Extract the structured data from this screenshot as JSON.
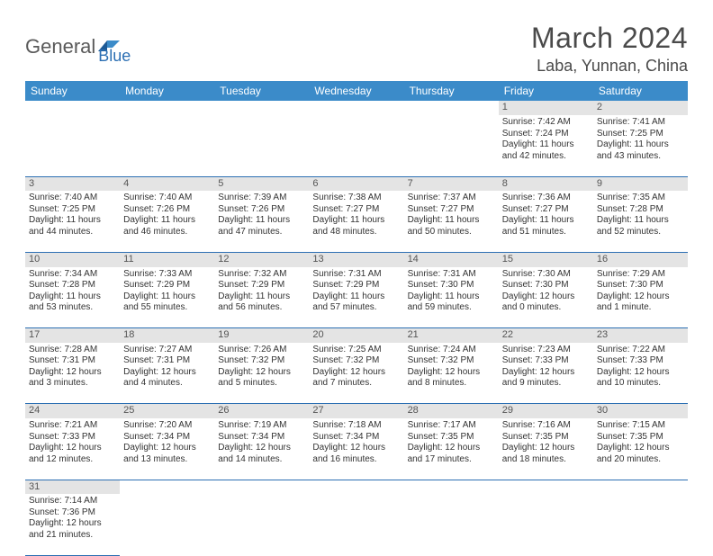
{
  "logo": {
    "part1": "General",
    "part2": "Blue"
  },
  "title": "March 2024",
  "location": "Laba, Yunnan, China",
  "colors": {
    "header_bg": "#3b8bc9",
    "header_text": "#ffffff",
    "daynum_bg": "#e4e4e4",
    "border": "#2c6fb3",
    "logo_gray": "#5a5a5a",
    "logo_blue": "#2c6fb3"
  },
  "day_headers": [
    "Sunday",
    "Monday",
    "Tuesday",
    "Wednesday",
    "Thursday",
    "Friday",
    "Saturday"
  ],
  "weeks": [
    [
      null,
      null,
      null,
      null,
      null,
      {
        "n": "1",
        "sr": "Sunrise: 7:42 AM",
        "ss": "Sunset: 7:24 PM",
        "d1": "Daylight: 11 hours",
        "d2": "and 42 minutes."
      },
      {
        "n": "2",
        "sr": "Sunrise: 7:41 AM",
        "ss": "Sunset: 7:25 PM",
        "d1": "Daylight: 11 hours",
        "d2": "and 43 minutes."
      }
    ],
    [
      {
        "n": "3",
        "sr": "Sunrise: 7:40 AM",
        "ss": "Sunset: 7:25 PM",
        "d1": "Daylight: 11 hours",
        "d2": "and 44 minutes."
      },
      {
        "n": "4",
        "sr": "Sunrise: 7:40 AM",
        "ss": "Sunset: 7:26 PM",
        "d1": "Daylight: 11 hours",
        "d2": "and 46 minutes."
      },
      {
        "n": "5",
        "sr": "Sunrise: 7:39 AM",
        "ss": "Sunset: 7:26 PM",
        "d1": "Daylight: 11 hours",
        "d2": "and 47 minutes."
      },
      {
        "n": "6",
        "sr": "Sunrise: 7:38 AM",
        "ss": "Sunset: 7:27 PM",
        "d1": "Daylight: 11 hours",
        "d2": "and 48 minutes."
      },
      {
        "n": "7",
        "sr": "Sunrise: 7:37 AM",
        "ss": "Sunset: 7:27 PM",
        "d1": "Daylight: 11 hours",
        "d2": "and 50 minutes."
      },
      {
        "n": "8",
        "sr": "Sunrise: 7:36 AM",
        "ss": "Sunset: 7:27 PM",
        "d1": "Daylight: 11 hours",
        "d2": "and 51 minutes."
      },
      {
        "n": "9",
        "sr": "Sunrise: 7:35 AM",
        "ss": "Sunset: 7:28 PM",
        "d1": "Daylight: 11 hours",
        "d2": "and 52 minutes."
      }
    ],
    [
      {
        "n": "10",
        "sr": "Sunrise: 7:34 AM",
        "ss": "Sunset: 7:28 PM",
        "d1": "Daylight: 11 hours",
        "d2": "and 53 minutes."
      },
      {
        "n": "11",
        "sr": "Sunrise: 7:33 AM",
        "ss": "Sunset: 7:29 PM",
        "d1": "Daylight: 11 hours",
        "d2": "and 55 minutes."
      },
      {
        "n": "12",
        "sr": "Sunrise: 7:32 AM",
        "ss": "Sunset: 7:29 PM",
        "d1": "Daylight: 11 hours",
        "d2": "and 56 minutes."
      },
      {
        "n": "13",
        "sr": "Sunrise: 7:31 AM",
        "ss": "Sunset: 7:29 PM",
        "d1": "Daylight: 11 hours",
        "d2": "and 57 minutes."
      },
      {
        "n": "14",
        "sr": "Sunrise: 7:31 AM",
        "ss": "Sunset: 7:30 PM",
        "d1": "Daylight: 11 hours",
        "d2": "and 59 minutes."
      },
      {
        "n": "15",
        "sr": "Sunrise: 7:30 AM",
        "ss": "Sunset: 7:30 PM",
        "d1": "Daylight: 12 hours",
        "d2": "and 0 minutes."
      },
      {
        "n": "16",
        "sr": "Sunrise: 7:29 AM",
        "ss": "Sunset: 7:30 PM",
        "d1": "Daylight: 12 hours",
        "d2": "and 1 minute."
      }
    ],
    [
      {
        "n": "17",
        "sr": "Sunrise: 7:28 AM",
        "ss": "Sunset: 7:31 PM",
        "d1": "Daylight: 12 hours",
        "d2": "and 3 minutes."
      },
      {
        "n": "18",
        "sr": "Sunrise: 7:27 AM",
        "ss": "Sunset: 7:31 PM",
        "d1": "Daylight: 12 hours",
        "d2": "and 4 minutes."
      },
      {
        "n": "19",
        "sr": "Sunrise: 7:26 AM",
        "ss": "Sunset: 7:32 PM",
        "d1": "Daylight: 12 hours",
        "d2": "and 5 minutes."
      },
      {
        "n": "20",
        "sr": "Sunrise: 7:25 AM",
        "ss": "Sunset: 7:32 PM",
        "d1": "Daylight: 12 hours",
        "d2": "and 7 minutes."
      },
      {
        "n": "21",
        "sr": "Sunrise: 7:24 AM",
        "ss": "Sunset: 7:32 PM",
        "d1": "Daylight: 12 hours",
        "d2": "and 8 minutes."
      },
      {
        "n": "22",
        "sr": "Sunrise: 7:23 AM",
        "ss": "Sunset: 7:33 PM",
        "d1": "Daylight: 12 hours",
        "d2": "and 9 minutes."
      },
      {
        "n": "23",
        "sr": "Sunrise: 7:22 AM",
        "ss": "Sunset: 7:33 PM",
        "d1": "Daylight: 12 hours",
        "d2": "and 10 minutes."
      }
    ],
    [
      {
        "n": "24",
        "sr": "Sunrise: 7:21 AM",
        "ss": "Sunset: 7:33 PM",
        "d1": "Daylight: 12 hours",
        "d2": "and 12 minutes."
      },
      {
        "n": "25",
        "sr": "Sunrise: 7:20 AM",
        "ss": "Sunset: 7:34 PM",
        "d1": "Daylight: 12 hours",
        "d2": "and 13 minutes."
      },
      {
        "n": "26",
        "sr": "Sunrise: 7:19 AM",
        "ss": "Sunset: 7:34 PM",
        "d1": "Daylight: 12 hours",
        "d2": "and 14 minutes."
      },
      {
        "n": "27",
        "sr": "Sunrise: 7:18 AM",
        "ss": "Sunset: 7:34 PM",
        "d1": "Daylight: 12 hours",
        "d2": "and 16 minutes."
      },
      {
        "n": "28",
        "sr": "Sunrise: 7:17 AM",
        "ss": "Sunset: 7:35 PM",
        "d1": "Daylight: 12 hours",
        "d2": "and 17 minutes."
      },
      {
        "n": "29",
        "sr": "Sunrise: 7:16 AM",
        "ss": "Sunset: 7:35 PM",
        "d1": "Daylight: 12 hours",
        "d2": "and 18 minutes."
      },
      {
        "n": "30",
        "sr": "Sunrise: 7:15 AM",
        "ss": "Sunset: 7:35 PM",
        "d1": "Daylight: 12 hours",
        "d2": "and 20 minutes."
      }
    ],
    [
      {
        "n": "31",
        "sr": "Sunrise: 7:14 AM",
        "ss": "Sunset: 7:36 PM",
        "d1": "Daylight: 12 hours",
        "d2": "and 21 minutes."
      },
      null,
      null,
      null,
      null,
      null,
      null
    ]
  ]
}
